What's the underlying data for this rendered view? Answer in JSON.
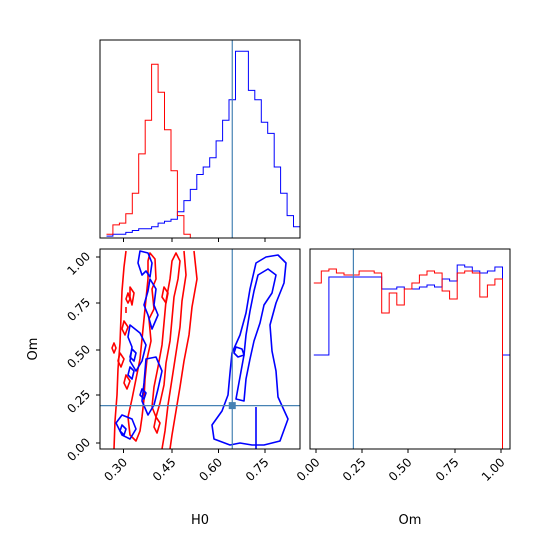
{
  "chart_data": {
    "type": "corner",
    "parameters": [
      "H0",
      "Om"
    ],
    "truths": {
      "H0": 0.65,
      "Om": 0.21
    },
    "colors": {
      "series_a": "#0000ff",
      "series_b": "#ff0000",
      "truth": "#4682b4"
    },
    "panels": [
      {
        "id": "H0-marginal",
        "type": "histogram",
        "xlim": [
          0.24,
          0.86
        ],
        "ylim": [
          0,
          1.06
        ],
        "series": [
          {
            "color": "#0000ff",
            "x": [
              0.26,
              0.28,
              0.3,
              0.32,
              0.34,
              0.36,
              0.38,
              0.4,
              0.42,
              0.44,
              0.46,
              0.48,
              0.5,
              0.52,
              0.54,
              0.56,
              0.58,
              0.6,
              0.62,
              0.64,
              0.66,
              0.68,
              0.7,
              0.72,
              0.74,
              0.76,
              0.78,
              0.8,
              0.82,
              0.84,
              0.86
            ],
            "y": [
              0.01,
              0.02,
              0.02,
              0.03,
              0.04,
              0.05,
              0.05,
              0.06,
              0.08,
              0.09,
              0.1,
              0.14,
              0.2,
              0.26,
              0.34,
              0.38,
              0.43,
              0.52,
              0.63,
              0.74,
              1.0,
              1.0,
              0.79,
              0.74,
              0.62,
              0.56,
              0.38,
              0.24,
              0.12,
              0.06,
              0.01
            ]
          },
          {
            "color": "#ff0000",
            "x": [
              0.26,
              0.28,
              0.3,
              0.32,
              0.34,
              0.36,
              0.38,
              0.4,
              0.42,
              0.44,
              0.46,
              0.48,
              0.5,
              0.52
            ],
            "y": [
              0.02,
              0.07,
              0.08,
              0.13,
              0.24,
              0.45,
              0.63,
              0.93,
              0.78,
              0.58,
              0.36,
              0.12,
              0.02,
              0.0
            ]
          }
        ]
      },
      {
        "id": "H0-Om-joint",
        "type": "contour",
        "xlabel": "H0",
        "ylabel": "Om",
        "xlim": [
          0.24,
          0.86
        ],
        "ylim": [
          -0.02,
          1.04
        ],
        "xticks": [
          "0.30",
          "0.45",
          "0.60",
          "0.75"
        ],
        "yticks": [
          "0.00",
          "0.25",
          "0.50",
          "0.75",
          "1.00"
        ],
        "marker": {
          "x": 0.65,
          "y": 0.21
        }
      },
      {
        "id": "Om-marginal",
        "type": "histogram",
        "xlabel": "Om",
        "xlim": [
          -0.02,
          1.04
        ],
        "ylim": [
          0,
          1.0
        ],
        "xticks": [
          "0.00",
          "0.25",
          "0.50",
          "0.75",
          "1.00"
        ],
        "series": [
          {
            "color": "#0000ff",
            "x": [
              0.0,
              0.04,
              0.08,
              0.12,
              0.16,
              0.2,
              0.24,
              0.28,
              0.32,
              0.36,
              0.4,
              0.44,
              0.48,
              0.52,
              0.56,
              0.6,
              0.64,
              0.68,
              0.72,
              0.76,
              0.8,
              0.84,
              0.88,
              0.92,
              0.96,
              1.0,
              1.04
            ],
            "y": [
              0.47,
              0.47,
              0.86,
              0.86,
              0.86,
              0.86,
              0.86,
              0.86,
              0.86,
              0.8,
              0.8,
              0.81,
              0.8,
              0.8,
              0.81,
              0.82,
              0.81,
              0.85,
              0.84,
              0.92,
              0.91,
              0.89,
              0.88,
              0.89,
              0.91,
              0.47,
              0.47
            ]
          },
          {
            "color": "#ff0000",
            "x": [
              0.0,
              0.04,
              0.08,
              0.12,
              0.16,
              0.2,
              0.24,
              0.28,
              0.32,
              0.36,
              0.4,
              0.44,
              0.48,
              0.52,
              0.56,
              0.6,
              0.64,
              0.68,
              0.72,
              0.76,
              0.8,
              0.84,
              0.88,
              0.92,
              0.96,
              1.0
            ],
            "y": [
              0.83,
              0.89,
              0.9,
              0.88,
              0.87,
              0.87,
              0.89,
              0.89,
              0.88,
              0.68,
              0.78,
              0.72,
              0.8,
              0.83,
              0.87,
              0.89,
              0.88,
              0.79,
              0.75,
              0.88,
              0.89,
              0.88,
              0.76,
              0.82,
              0.85,
              0.0
            ]
          }
        ]
      }
    ]
  }
}
